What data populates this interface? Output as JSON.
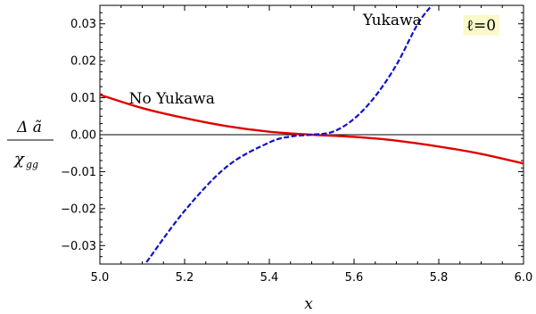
{
  "chart_data": {
    "type": "line",
    "xlabel": "x",
    "ylabel": {
      "numerator": "Δ ã",
      "denominator": "χ",
      "denominator_sub": "gg"
    },
    "xlim": [
      5.0,
      6.0
    ],
    "ylim": [
      -0.035,
      0.035
    ],
    "x_ticks": [
      "5.0",
      "5.2",
      "5.4",
      "5.6",
      "5.8",
      "6.0"
    ],
    "y_ticks": [
      "0.03",
      "0.02",
      "0.01",
      "0.00",
      "−0.01",
      "−0.02",
      "−0.03"
    ],
    "x_tick_values": [
      5.0,
      5.2,
      5.4,
      5.6,
      5.8,
      6.0
    ],
    "y_tick_values": [
      0.03,
      0.02,
      0.01,
      0.0,
      -0.01,
      -0.02,
      -0.03
    ],
    "grid": false,
    "zero_line": true,
    "annotations": [
      {
        "text": "No Yukawa",
        "x": 5.17,
        "y": 0.0085
      },
      {
        "text": "Yukawa",
        "x": 5.69,
        "y": 0.0297
      },
      {
        "text": "ℓ=0",
        "x": 5.9,
        "y": 0.0283
      }
    ],
    "series": [
      {
        "style": "solid",
        "color": "#e00000",
        "x": [
          5.0,
          5.1,
          5.2,
          5.3,
          5.4,
          5.5,
          5.6,
          5.7,
          5.8,
          5.9,
          6.0
        ],
        "y": [
          0.0108,
          0.0072,
          0.0045,
          0.0023,
          0.0008,
          0.0,
          -0.0006,
          -0.0016,
          -0.0032,
          -0.0052,
          -0.0078
        ]
      },
      {
        "style": "dashed",
        "color": "#1010d0",
        "x": [
          5.11,
          5.2,
          5.3,
          5.4,
          5.45,
          5.5,
          5.55,
          5.6,
          5.65,
          5.7,
          5.75,
          5.785
        ],
        "y": [
          -0.0345,
          -0.0206,
          -0.0086,
          -0.0021,
          -0.0005,
          0.0,
          0.0008,
          0.0043,
          0.0104,
          0.0189,
          0.0299,
          0.0352
        ]
      }
    ]
  }
}
